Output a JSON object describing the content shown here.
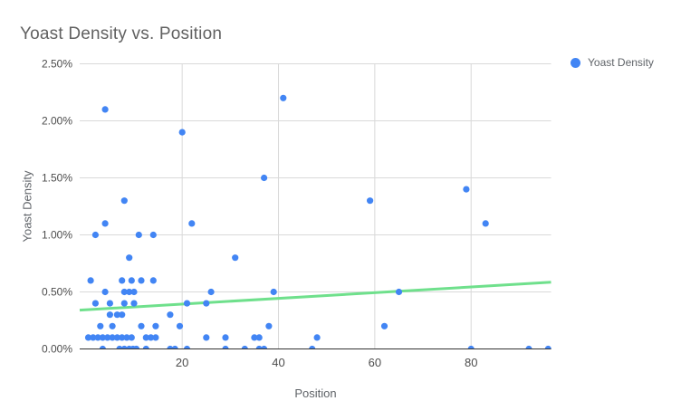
{
  "header": {
    "title": "Yoast Density vs. Position"
  },
  "legend": {
    "label": "Yoast Density",
    "marker_color": "#4285f4"
  },
  "chart_data": {
    "type": "scatter",
    "title": "Yoast Density vs. Position",
    "xlabel": "Position",
    "ylabel": "Yoast Density",
    "grid": true,
    "legend_position": "top-right",
    "xlim": [
      -1.28,
      96.6
    ],
    "ylim": [
      0,
      2.5
    ],
    "x_ticks": [
      {
        "value": 20,
        "label": "20"
      },
      {
        "value": 40,
        "label": "40"
      },
      {
        "value": 60,
        "label": "60"
      },
      {
        "value": 80,
        "label": "80"
      }
    ],
    "y_ticks": [
      {
        "value": 0.0,
        "label": "0.00%"
      },
      {
        "value": 0.5,
        "label": "0.50%"
      },
      {
        "value": 1.0,
        "label": "1.00%"
      },
      {
        "value": 1.5,
        "label": "1.50%"
      },
      {
        "value": 2.0,
        "label": "2.00%"
      },
      {
        "value": 2.5,
        "label": "2.50%"
      }
    ],
    "series": [
      {
        "name": "Yoast Density",
        "color": "#4285f4",
        "points": [
          [
            4,
            2.1
          ],
          [
            41,
            2.2
          ],
          [
            20,
            1.9
          ],
          [
            37,
            1.5
          ],
          [
            79,
            1.4
          ],
          [
            8,
            1.3
          ],
          [
            59,
            1.3
          ],
          [
            4,
            1.1
          ],
          [
            22,
            1.1
          ],
          [
            83,
            1.1
          ],
          [
            2,
            1.0
          ],
          [
            11,
            1.0
          ],
          [
            14,
            1.0
          ],
          [
            9,
            0.8
          ],
          [
            31,
            0.8
          ],
          [
            1,
            0.6
          ],
          [
            7.5,
            0.6
          ],
          [
            9.5,
            0.6
          ],
          [
            11.5,
            0.6
          ],
          [
            14,
            0.6
          ],
          [
            4,
            0.5
          ],
          [
            8,
            0.5
          ],
          [
            9,
            0.5
          ],
          [
            10,
            0.5
          ],
          [
            26,
            0.5
          ],
          [
            39,
            0.5
          ],
          [
            65,
            0.5
          ],
          [
            2,
            0.4
          ],
          [
            5,
            0.4
          ],
          [
            8,
            0.4
          ],
          [
            10,
            0.4
          ],
          [
            21,
            0.4
          ],
          [
            25,
            0.4
          ],
          [
            5,
            0.3
          ],
          [
            6.5,
            0.3
          ],
          [
            7.5,
            0.3
          ],
          [
            17.5,
            0.3
          ],
          [
            3,
            0.2
          ],
          [
            5.5,
            0.2
          ],
          [
            11.5,
            0.2
          ],
          [
            14.5,
            0.2
          ],
          [
            19.5,
            0.2
          ],
          [
            38,
            0.2
          ],
          [
            62,
            0.2
          ],
          [
            0.5,
            0.1
          ],
          [
            1.5,
            0.1
          ],
          [
            2.5,
            0.1
          ],
          [
            3.5,
            0.1
          ],
          [
            4.5,
            0.1
          ],
          [
            5.5,
            0.1
          ],
          [
            6.5,
            0.1
          ],
          [
            7.5,
            0.1
          ],
          [
            8.5,
            0.1
          ],
          [
            9.5,
            0.1
          ],
          [
            12.5,
            0.1
          ],
          [
            13.5,
            0.1
          ],
          [
            14.5,
            0.1
          ],
          [
            25,
            0.1
          ],
          [
            29,
            0.1
          ],
          [
            35,
            0.1
          ],
          [
            36,
            0.1
          ],
          [
            48,
            0.1
          ],
          [
            3.5,
            0.0
          ],
          [
            7,
            0.0
          ],
          [
            8,
            0.0
          ],
          [
            9,
            0.0
          ],
          [
            9.8,
            0.0
          ],
          [
            10.5,
            0.0
          ],
          [
            12.5,
            0.0
          ],
          [
            17.5,
            0.0
          ],
          [
            18.5,
            0.0
          ],
          [
            21,
            0.0
          ],
          [
            29,
            0.0
          ],
          [
            33,
            0.0
          ],
          [
            36,
            0.0
          ],
          [
            37,
            0.0
          ],
          [
            47,
            0.0
          ],
          [
            80,
            0.0
          ],
          [
            92,
            0.0
          ],
          [
            96,
            0.0
          ]
        ]
      }
    ],
    "trendline": {
      "color": "#6fe08c",
      "x1": -1.28,
      "y1": 0.34,
      "x2": 96.6,
      "y2": 0.585
    }
  }
}
